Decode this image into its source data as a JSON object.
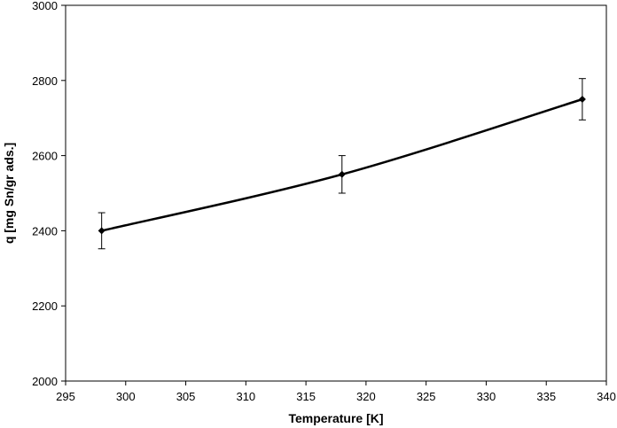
{
  "chart_data": {
    "type": "line",
    "title": "",
    "xlabel": "Temperature [K]",
    "ylabel": "q [mg Sn/gr ads.]",
    "xlim": [
      295,
      340
    ],
    "ylim": [
      2000,
      3000
    ],
    "xticks": [
      295,
      300,
      305,
      310,
      315,
      320,
      325,
      330,
      335,
      340
    ],
    "yticks": [
      2000,
      2200,
      2400,
      2600,
      2800,
      3000
    ],
    "grid": false,
    "legend": "none",
    "series": [
      {
        "x": [
          298,
          318,
          338
        ],
        "y": [
          2400,
          2550,
          2750
        ],
        "error": [
          48,
          50,
          55
        ],
        "color": "#000000"
      }
    ]
  }
}
